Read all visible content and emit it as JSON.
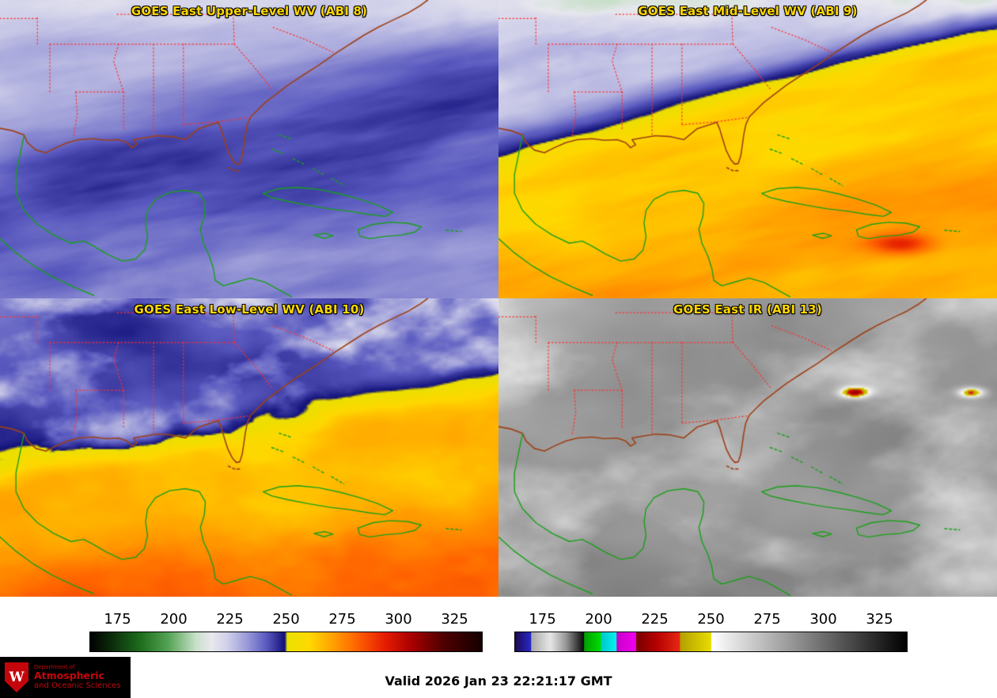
{
  "panels": [
    {
      "id": "abi8",
      "title": "GOES East Upper-Level WV (ABI 8)"
    },
    {
      "id": "abi9",
      "title": "GOES East Mid-Level WV (ABI 9)"
    },
    {
      "id": "abi10",
      "title": "GOES East Low-Level WV (ABI 10)"
    },
    {
      "id": "abi13",
      "title": "GOES East IR (ABI 13)"
    }
  ],
  "colors": {
    "panel_title": "#ffd700",
    "uw_red": "#c5050c",
    "background": "#ffffff"
  },
  "overlay_colors": {
    "state_borders": "#ff3030",
    "us_coast": "#9e4016",
    "intl_coast": "#18a018"
  },
  "colorbars": [
    {
      "id": "wv",
      "ticks": [
        175,
        200,
        225,
        250,
        275,
        300,
        325
      ],
      "range": [
        162.5,
        337.5
      ],
      "stops": [
        [
          0.0,
          "#000000"
        ],
        [
          0.05,
          "#0a280a"
        ],
        [
          0.13,
          "#1e6e1e"
        ],
        [
          0.2,
          "#55a455"
        ],
        [
          0.27,
          "#c8e0c8"
        ],
        [
          0.31,
          "#e8e8ef"
        ],
        [
          0.35,
          "#d0d0ea"
        ],
        [
          0.4,
          "#9a9ad8"
        ],
        [
          0.45,
          "#5a5ac0"
        ],
        [
          0.497,
          "#101078"
        ],
        [
          0.503,
          "#ebe100"
        ],
        [
          0.56,
          "#ffd800"
        ],
        [
          0.62,
          "#ffa000"
        ],
        [
          0.68,
          "#ff6400"
        ],
        [
          0.75,
          "#e61e00"
        ],
        [
          0.82,
          "#aa0000"
        ],
        [
          0.9,
          "#500000"
        ],
        [
          1.0,
          "#140000"
        ]
      ]
    },
    {
      "id": "ir",
      "ticks": [
        175,
        200,
        225,
        250,
        275,
        300,
        325
      ],
      "range": [
        162.5,
        337.5
      ],
      "stops": [
        [
          0.0,
          "#1e0a50"
        ],
        [
          0.04,
          "#2828c8"
        ],
        [
          0.042,
          "#aaaaaa"
        ],
        [
          0.09,
          "#e6e6e6"
        ],
        [
          0.13,
          "#969696"
        ],
        [
          0.175,
          "#0a0a0a"
        ],
        [
          0.177,
          "#00a000"
        ],
        [
          0.218,
          "#00dc00"
        ],
        [
          0.22,
          "#00c8c8"
        ],
        [
          0.258,
          "#00f0f0"
        ],
        [
          0.26,
          "#c800c8"
        ],
        [
          0.308,
          "#f000f0"
        ],
        [
          0.31,
          "#780000"
        ],
        [
          0.36,
          "#b40000"
        ],
        [
          0.42,
          "#e62814"
        ],
        [
          0.422,
          "#b4a000"
        ],
        [
          0.5,
          "#e6dc00"
        ],
        [
          0.502,
          "#ffffff"
        ],
        [
          1.0,
          "#000000"
        ]
      ]
    }
  ],
  "footer": {
    "valid_time": "Valid 2026 Jan 23 22:21:17 GMT",
    "logo": {
      "letter": "W",
      "dept": "Department of",
      "line1": "Atmospheric",
      "line2": "and Oceanic Sciences"
    }
  }
}
